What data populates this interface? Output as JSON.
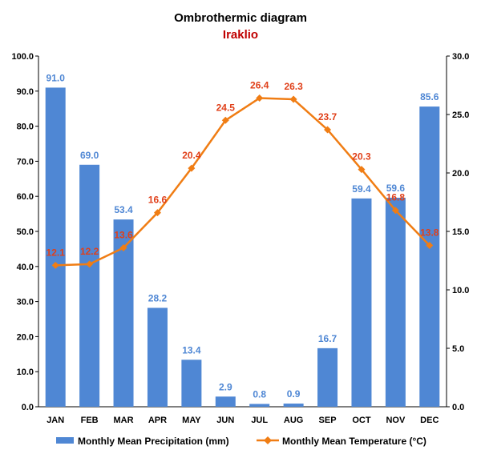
{
  "chart_data": {
    "type": "bar",
    "title": "Ombrothermic diagram",
    "subtitle": "Iraklio",
    "categories": [
      "JAN",
      "FEB",
      "MAR",
      "APR",
      "MAY",
      "JUN",
      "JUL",
      "AUG",
      "SEP",
      "OCT",
      "NOV",
      "DEC"
    ],
    "series": [
      {
        "name": "Monthly Mean Precipitation (mm)",
        "type": "bar",
        "axis": "left",
        "color": "#4f87d4",
        "values": [
          91.0,
          69.0,
          53.4,
          28.2,
          13.4,
          2.9,
          0.8,
          0.9,
          16.7,
          59.4,
          59.6,
          85.6
        ],
        "labels": [
          "91.0",
          "69.0",
          "53.4",
          "28.2",
          "13.4",
          "2.9",
          "0.8",
          "0.9",
          "16.7",
          "59.4",
          "59.6",
          "85.6"
        ]
      },
      {
        "name": "Monthly Mean Temperature (°C)",
        "type": "line",
        "axis": "right",
        "color": "#f07d14",
        "values": [
          12.1,
          12.2,
          13.6,
          16.6,
          20.4,
          24.5,
          26.4,
          26.3,
          23.7,
          20.3,
          16.8,
          13.8
        ],
        "labels": [
          "12.1",
          "12.2",
          "13.6",
          "16.6",
          "20.4",
          "24.5",
          "26.4",
          "26.3",
          "23.7",
          "20.3",
          "16.8",
          "13.8"
        ]
      }
    ],
    "y_left": {
      "ylim": [
        0,
        100
      ],
      "ticks": [
        "0.0",
        "10.0",
        "20.0",
        "30.0",
        "40.0",
        "50.0",
        "60.0",
        "70.0",
        "80.0",
        "90.0",
        "100.0"
      ]
    },
    "y_right": {
      "ylim": [
        0,
        30
      ],
      "ticks": [
        "0.0",
        "5.0",
        "10.0",
        "15.0",
        "20.0",
        "25.0",
        "30.0"
      ]
    },
    "grid": false,
    "legend_position": "bottom",
    "colors": {
      "title": "#000000",
      "subtitle": "#c00000",
      "bar_label": "#4f87d4",
      "line_label": "#e0401a"
    }
  }
}
